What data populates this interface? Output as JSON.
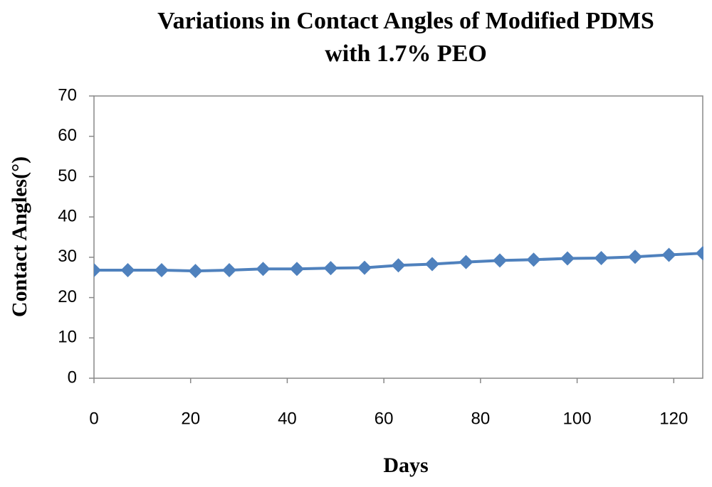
{
  "chart_data": {
    "type": "line",
    "title": [
      "Variations in Contact Angles of Modified PDMS",
      "with 1.7% PEO"
    ],
    "x_label": "Days",
    "y_label": "Contact Angles(°)",
    "x": [
      0,
      7,
      14,
      21,
      28,
      35,
      42,
      49,
      56,
      63,
      70,
      77,
      84,
      91,
      98,
      105,
      112,
      119,
      126
    ],
    "series": [
      {
        "name": "Contact Angles",
        "color": "#4f81bd",
        "values": [
          26.8,
          26.8,
          26.8,
          26.6,
          26.8,
          27.1,
          27.1,
          27.3,
          27.4,
          28.0,
          28.3,
          28.8,
          29.2,
          29.4,
          29.7,
          29.8,
          30.1,
          30.6,
          31.0
        ]
      }
    ],
    "xlim": [
      0,
      126
    ],
    "xticks": [
      0,
      20,
      40,
      60,
      80,
      100,
      120
    ],
    "ylim": [
      0,
      70
    ],
    "yticks": [
      0,
      10,
      20,
      30,
      40,
      50,
      60,
      70
    ],
    "grid": false
  }
}
